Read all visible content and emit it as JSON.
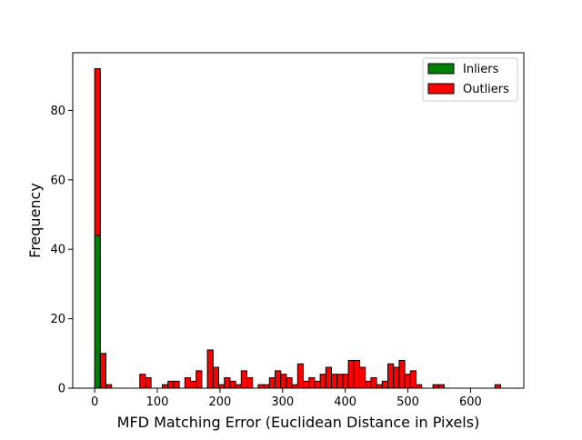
{
  "chart_data": {
    "type": "bar",
    "subtype": "stacked-histogram",
    "title": "",
    "xlabel": "MFD Matching Error (Euclidean Distance in Pixels)",
    "ylabel": "Frequency",
    "xlim": [
      -35,
      685
    ],
    "ylim": [
      0,
      96.6
    ],
    "xticks": [
      0,
      100,
      200,
      300,
      400,
      500,
      600
    ],
    "yticks": [
      0,
      20,
      40,
      60,
      80
    ],
    "bin_width": 9.0,
    "bin_starts": [
      0,
      9,
      18,
      27,
      36,
      45,
      54,
      63,
      72,
      81,
      90,
      99,
      108,
      117,
      126,
      135,
      144,
      153,
      162,
      171,
      180,
      189,
      198,
      207,
      216,
      225,
      234,
      243,
      252,
      261,
      270,
      279,
      288,
      297,
      306,
      315,
      324,
      333,
      342,
      351,
      360,
      369,
      378,
      387,
      396,
      405,
      414,
      423,
      432,
      441,
      450,
      459,
      468,
      477,
      486,
      495,
      504,
      513,
      522,
      531,
      540,
      549,
      558,
      567,
      576,
      585,
      594,
      603,
      612,
      621,
      630,
      639
    ],
    "series": [
      {
        "name": "Inliers",
        "color": "#008000",
        "values": [
          44,
          0,
          0,
          0,
          0,
          0,
          0,
          0,
          0,
          0,
          0,
          0,
          0,
          0,
          0,
          0,
          0,
          0,
          0,
          0,
          0,
          0,
          0,
          0,
          0,
          0,
          0,
          0,
          0,
          0,
          0,
          0,
          0,
          0,
          0,
          0,
          0,
          0,
          0,
          0,
          0,
          0,
          0,
          0,
          0,
          0,
          0,
          0,
          0,
          0,
          0,
          0,
          0,
          0,
          0,
          0,
          0,
          0,
          0,
          0,
          0,
          0,
          0,
          0,
          0,
          0,
          0,
          0,
          0,
          0,
          0,
          0
        ]
      },
      {
        "name": "Outliers",
        "color": "#ff0000",
        "values": [
          48,
          10,
          1,
          0,
          0,
          0,
          0,
          0,
          4,
          3,
          0,
          0,
          1,
          2,
          2,
          0,
          3,
          2,
          5,
          0,
          11,
          6,
          1,
          3,
          2,
          1,
          5,
          3,
          0,
          1,
          1,
          3,
          5,
          4,
          3,
          1,
          7,
          2,
          3,
          2,
          4,
          6,
          4,
          4,
          4,
          8,
          8,
          6,
          2,
          3,
          1,
          2,
          7,
          6,
          8,
          4,
          5,
          1,
          0,
          0,
          1,
          1,
          0,
          0,
          0,
          0,
          0,
          0,
          0,
          0,
          0,
          1
        ]
      }
    ],
    "legend_position": "top-right",
    "grid": false
  }
}
